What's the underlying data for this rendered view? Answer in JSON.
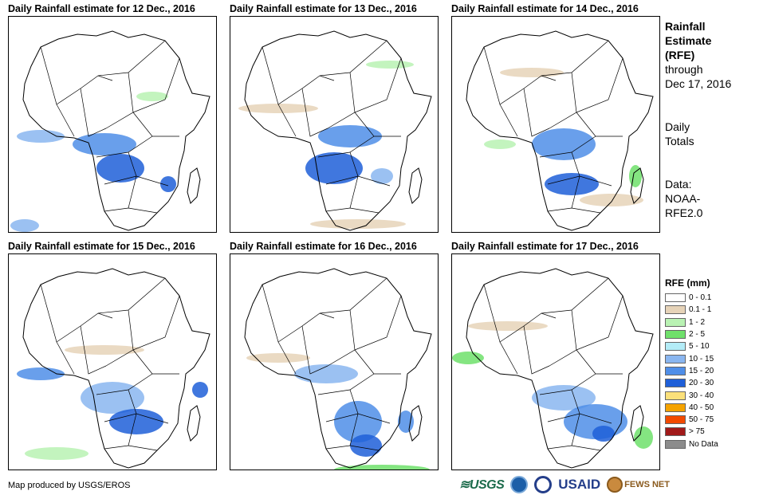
{
  "panels": [
    {
      "title": "Daily Rainfall estimate for 12 Dec., 2016"
    },
    {
      "title": "Daily Rainfall estimate for 13 Dec., 2016"
    },
    {
      "title": "Daily Rainfall estimate for 14 Dec., 2016"
    },
    {
      "title": "Daily Rainfall estimate for 15 Dec., 2016"
    },
    {
      "title": "Daily Rainfall estimate for 16 Dec., 2016"
    },
    {
      "title": "Daily Rainfall estimate for 17 Dec., 2016"
    }
  ],
  "side": {
    "title_line1": "Rainfall",
    "title_line2": "Estimate",
    "title_line3": "(RFE)",
    "through_line1": "through",
    "through_line2": "Dec 17, 2016",
    "totals_line1": "Daily",
    "totals_line2": "Totals",
    "data_line1": "Data:",
    "data_line2": "NOAA-",
    "data_line3": "RFE2.0"
  },
  "legend": {
    "title": "RFE (mm)",
    "items": [
      {
        "label": "0 - 0.1",
        "color": "#ffffff"
      },
      {
        "label": "0.1 - 1",
        "color": "#e6d3b8"
      },
      {
        "label": "1 - 2",
        "color": "#b9f2b3"
      },
      {
        "label": "2 - 5",
        "color": "#6fe06b"
      },
      {
        "label": "5 - 10",
        "color": "#b3ecf7"
      },
      {
        "label": "10 - 15",
        "color": "#8ab6f0"
      },
      {
        "label": "15 - 20",
        "color": "#4f8ee8"
      },
      {
        "label": "20 - 30",
        "color": "#1f5fd8"
      },
      {
        "label": "30 - 40",
        "color": "#fbe07a"
      },
      {
        "label": "40 - 50",
        "color": "#f5a300"
      },
      {
        "label": "50 - 75",
        "color": "#f24a00"
      },
      {
        "label": "> 75",
        "color": "#a11a1a"
      },
      {
        "label": "No Data",
        "color": "#8c8c8c"
      }
    ]
  },
  "credit": "Map produced by USGS/EROS",
  "logos": {
    "usgs": "USGS",
    "usgs_icon": "usgs-logo-icon",
    "noaa_icon": "noaa-seal-icon",
    "usaid": "USAID",
    "usaid_icon": "usaid-seal-icon",
    "fews": "FEWS NET",
    "fews_icon": "fews-globe-icon"
  }
}
